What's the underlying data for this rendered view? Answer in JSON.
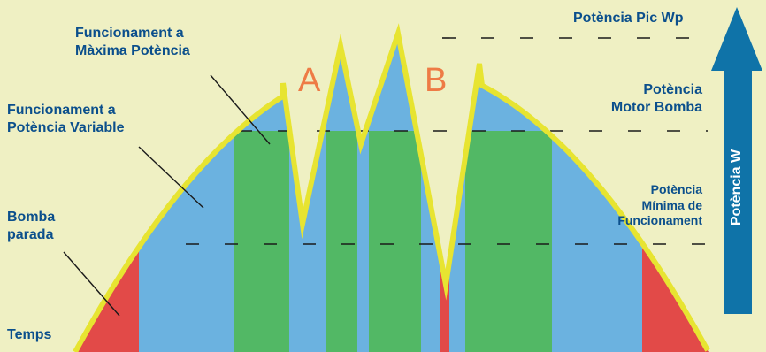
{
  "labels": {
    "pic_wp": "Potència Pic Wp",
    "max_power": [
      "Funcionament a",
      "Màxima Potència"
    ],
    "variable_power": [
      "Funcionament a",
      "Potència Variable"
    ],
    "pump_stopped": [
      "Bomba",
      "parada"
    ],
    "time": "Temps",
    "pump_motor_power": [
      "Potència",
      "Motor Bomba"
    ],
    "min_operating_power": [
      "Potència",
      "Mínima de",
      "Funcionament"
    ],
    "letter_a": "A",
    "letter_b": "B",
    "axis": "Potència W"
  },
  "colors": {
    "background": "#eff0c3",
    "curve": "#e7e431",
    "blue_region": "#6bb2e0",
    "green_region": "#52b865",
    "red_region": "#e24a48",
    "arrow": "#0f73a8",
    "text": "#0b4f8c",
    "letters": "#ee7b45",
    "dashes": "#1a1a1a"
  }
}
